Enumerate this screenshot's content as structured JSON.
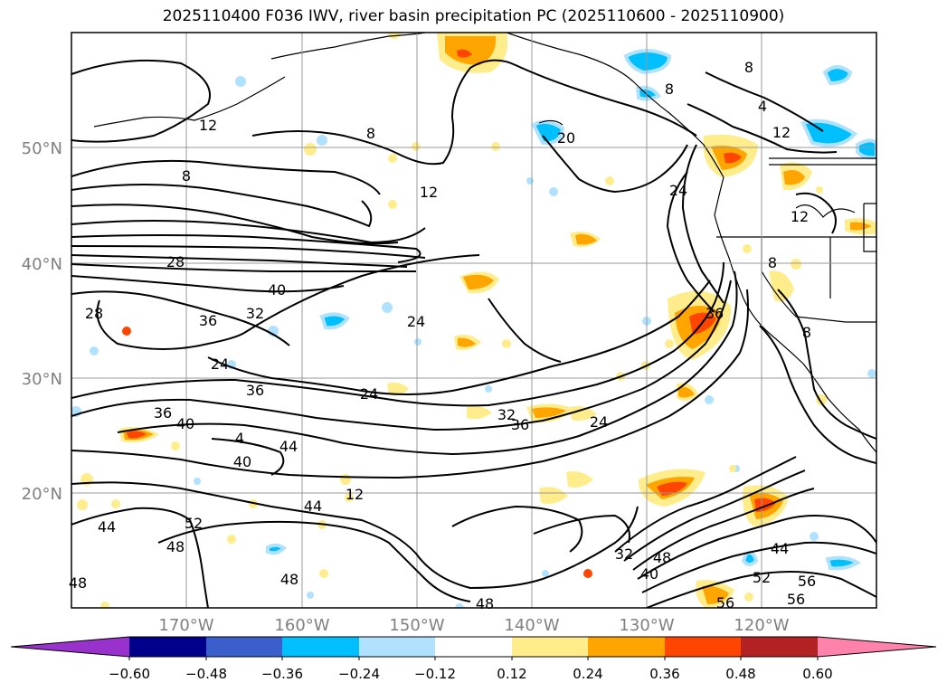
{
  "title": "2025110400 F036 IWV, river basin precipitation PC (2025110600 - 2025110900)",
  "map": {
    "lon_labels": [
      "170°W",
      "160°W",
      "150°W",
      "140°W",
      "130°W",
      "120°W"
    ],
    "lat_labels": [
      "50°N",
      "40°N",
      "30°N",
      "20°N"
    ],
    "label_color": "#808080",
    "grid_color": "#999999",
    "contour_color": "#000000",
    "contour_labels": [
      {
        "text": "8"
      },
      {
        "text": "12"
      },
      {
        "text": "8"
      },
      {
        "text": "8"
      },
      {
        "text": "20"
      },
      {
        "text": "12"
      },
      {
        "text": "8"
      },
      {
        "text": "24"
      },
      {
        "text": "4"
      },
      {
        "text": "12"
      },
      {
        "text": "12"
      },
      {
        "text": "8"
      },
      {
        "text": "28"
      },
      {
        "text": "40"
      },
      {
        "text": "28"
      },
      {
        "text": "36"
      },
      {
        "text": "32"
      },
      {
        "text": "24"
      },
      {
        "text": "24"
      },
      {
        "text": "36"
      },
      {
        "text": "24"
      },
      {
        "text": "36"
      },
      {
        "text": "40"
      },
      {
        "text": "4"
      },
      {
        "text": "44"
      },
      {
        "text": "40"
      },
      {
        "text": "12"
      },
      {
        "text": "32"
      },
      {
        "text": "36"
      },
      {
        "text": "24"
      },
      {
        "text": "36"
      },
      {
        "text": "8"
      },
      {
        "text": "44"
      },
      {
        "text": "52"
      },
      {
        "text": "44"
      },
      {
        "text": "48"
      },
      {
        "text": "48"
      },
      {
        "text": "48"
      },
      {
        "text": "48"
      },
      {
        "text": "32"
      },
      {
        "text": "40"
      },
      {
        "text": "48"
      },
      {
        "text": "44"
      },
      {
        "text": "52"
      },
      {
        "text": "56"
      },
      {
        "text": "56"
      },
      {
        "text": "56"
      }
    ]
  },
  "colorbar": {
    "tick_labels": [
      "−0.60",
      "−0.48",
      "−0.36",
      "−0.24",
      "−0.12",
      "0.12",
      "0.24",
      "0.36",
      "0.48",
      "0.60"
    ],
    "colors": [
      "#9932cc",
      "#00008b",
      "#3a5fcd",
      "#00bfff",
      "#b0e2ff",
      "#ffffff",
      "#ffec8b",
      "#ffa500",
      "#ff4500",
      "#b22222",
      "#ff82ab"
    ]
  }
}
